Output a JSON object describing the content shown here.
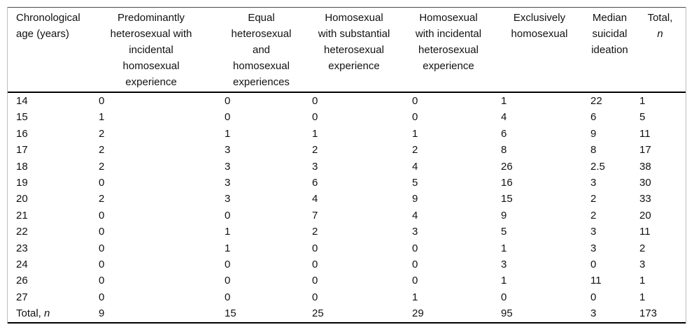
{
  "table": {
    "headers": [
      "Chronological age (years)",
      "Predominantly heterosexual with incidental homosexual experience",
      "Equal heterosexual and homosexual experiences",
      "Homosexual with substantial heterosexual experience",
      "Homosexual with incidental heterosexual experience",
      "Exclusively homosexual",
      "Median suicidal ideation",
      {
        "line1": "Total,",
        "line2": "n"
      }
    ],
    "rows": [
      {
        "label": "14",
        "values": [
          "0",
          "0",
          "0",
          "0",
          "1",
          "22",
          "1"
        ]
      },
      {
        "label": "15",
        "values": [
          "1",
          "0",
          "0",
          "0",
          "4",
          "6",
          "5"
        ]
      },
      {
        "label": "16",
        "values": [
          "2",
          "1",
          "1",
          "1",
          "6",
          "9",
          "11"
        ]
      },
      {
        "label": "17",
        "values": [
          "2",
          "3",
          "2",
          "2",
          "8",
          "8",
          "17"
        ]
      },
      {
        "label": "18",
        "values": [
          "2",
          "3",
          "3",
          "4",
          "26",
          "2.5",
          "38"
        ]
      },
      {
        "label": "19",
        "values": [
          "0",
          "3",
          "6",
          "5",
          "16",
          "3",
          "30"
        ]
      },
      {
        "label": "20",
        "values": [
          "2",
          "3",
          "4",
          "9",
          "15",
          "2",
          "33"
        ]
      },
      {
        "label": "21",
        "values": [
          "0",
          "0",
          "7",
          "4",
          "9",
          "2",
          "20"
        ]
      },
      {
        "label": "22",
        "values": [
          "0",
          "1",
          "2",
          "3",
          "5",
          "3",
          "11"
        ]
      },
      {
        "label": "23",
        "values": [
          "0",
          "1",
          "0",
          "0",
          "1",
          "3",
          "2"
        ]
      },
      {
        "label": "24",
        "values": [
          "0",
          "0",
          "0",
          "0",
          "3",
          "0",
          "3"
        ]
      },
      {
        "label": "26",
        "values": [
          "0",
          "0",
          "0",
          "0",
          "1",
          "11",
          "1"
        ]
      },
      {
        "label": "27",
        "values": [
          "0",
          "0",
          "0",
          "1",
          "0",
          "0",
          "1"
        ]
      }
    ],
    "total_row": {
      "label_prefix": "Total, ",
      "label_italic": "n",
      "values": [
        "9",
        "15",
        "25",
        "29",
        "95",
        "3",
        "173"
      ]
    },
    "colors": {
      "text": "#111111",
      "rule_heavy": "#000000",
      "rule_top": "#4a4a4a",
      "rule_side": "#bdbdbd",
      "background": "#ffffff"
    }
  }
}
